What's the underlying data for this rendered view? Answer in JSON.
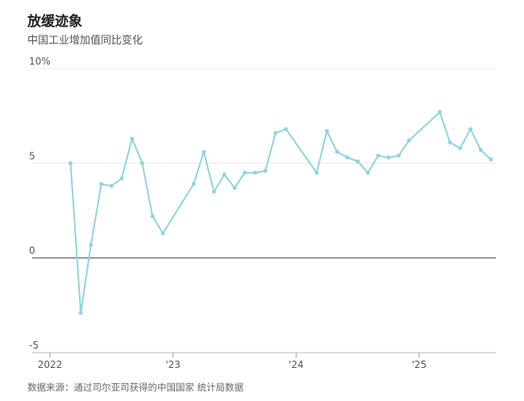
{
  "chart_data": {
    "type": "line",
    "title": "放缓迹象",
    "subtitle": "中国工业增加值同比变化",
    "source": "数据来源：通过司尔亚司获得的中国国家 统计局数据",
    "x": [
      2022.167,
      2022.25,
      2022.333,
      2022.417,
      2022.5,
      2022.583,
      2022.667,
      2022.75,
      2022.833,
      2022.917,
      2023.167,
      2023.25,
      2023.333,
      2023.417,
      2023.5,
      2023.583,
      2023.667,
      2023.75,
      2023.833,
      2023.917,
      2024.167,
      2024.25,
      2024.333,
      2024.417,
      2024.5,
      2024.583,
      2024.667,
      2024.75,
      2024.833,
      2024.917,
      2025.167,
      2025.25,
      2025.333,
      2025.417,
      2025.5,
      2025.583
    ],
    "series": [
      {
        "color": "#93d3da",
        "values": [
          5.0,
          -2.9,
          0.7,
          3.9,
          3.8,
          4.2,
          6.3,
          5.0,
          2.2,
          1.3,
          3.9,
          5.6,
          3.5,
          4.4,
          3.7,
          4.5,
          4.5,
          4.6,
          6.6,
          6.8,
          4.5,
          6.7,
          5.6,
          5.3,
          5.1,
          4.5,
          5.4,
          5.3,
          5.4,
          6.2,
          7.7,
          6.1,
          5.8,
          6.8,
          5.7,
          5.2
        ]
      }
    ],
    "xlim": [
      2021.85,
      2025.6
    ],
    "xticks": [
      {
        "value": 2022,
        "label": "2022"
      },
      {
        "value": 2023,
        "label": "'23"
      },
      {
        "value": 2024,
        "label": "'24"
      },
      {
        "value": 2025,
        "label": "'25"
      }
    ],
    "ylim": [
      -5,
      10
    ],
    "yticks": [
      -5,
      0,
      5,
      {
        "value": 10,
        "label": "10%"
      }
    ],
    "grid": true
  }
}
